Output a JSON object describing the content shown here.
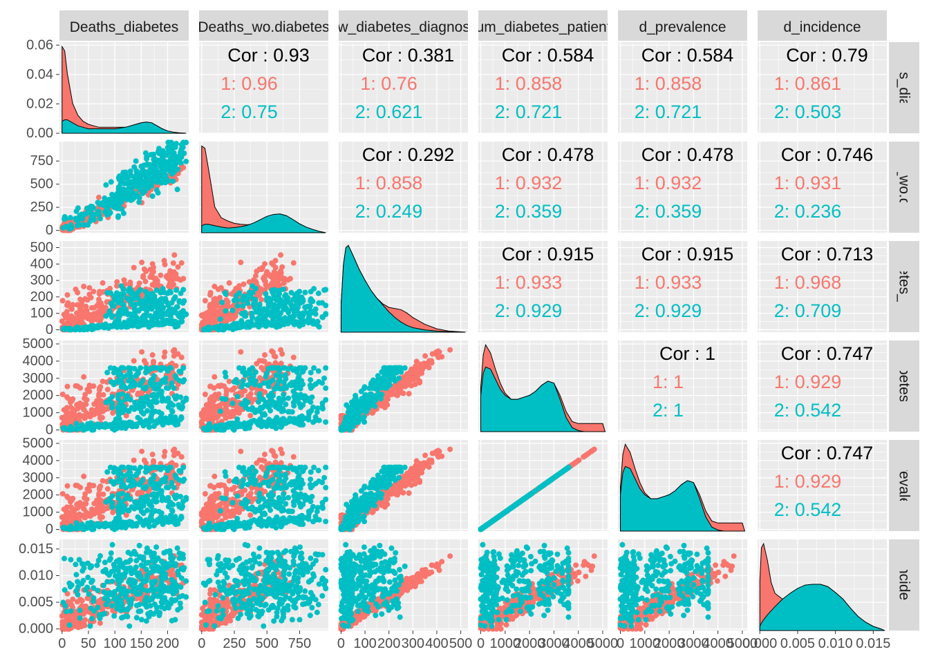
{
  "colors": {
    "group1": "#F8766D",
    "group2": "#00BFC4",
    "panel_bg": "#EBEBEB",
    "strip_bg": "#D9D9D9",
    "grid": "#FFFFFF",
    "tick_text": "#4D4D4D",
    "cor_text": "#000000"
  },
  "chart_data": {
    "type": "scatter",
    "variables": [
      "Deaths_diabetes",
      "Deaths_wo.diabetes",
      "new_diabetes_diagnoses",
      "num_diabetes_patients",
      "d_prevalence",
      "d_incidence"
    ],
    "column_strip_labels": [
      "Deaths_diabetes",
      "Deaths_wo.diabetes",
      "new_diabetes_diagnoses",
      "num_diabetes_patients",
      "d_prevalence",
      "d_incidence"
    ],
    "row_strip_labels": [
      "Deaths_diabetes",
      "Deaths_wo.diabetes",
      "new_diabetes_diagnoses",
      "num_diabetes_patients",
      "d_prevalence",
      "d_incidence"
    ],
    "groups": [
      "1",
      "2"
    ],
    "x_ranges": [
      [
        -5,
        240
      ],
      [
        -20,
        970
      ],
      [
        -10,
        530
      ],
      [
        -100,
        5200
      ],
      [
        -100,
        5200
      ],
      [
        -0.0003,
        0.0168
      ]
    ],
    "y_ranges": [
      [
        0,
        0.062
      ],
      [
        -25,
        960
      ],
      [
        -15,
        540
      ],
      [
        -100,
        5200
      ],
      [
        -100,
        5200
      ],
      [
        -0.0003,
        0.0168
      ]
    ],
    "x_ticks": [
      {
        "values": [
          0,
          50,
          100,
          150,
          200
        ],
        "labels": [
          "0",
          "50",
          "100",
          "150",
          "200"
        ]
      },
      {
        "values": [
          0,
          250,
          500,
          750
        ],
        "labels": [
          "0",
          "250",
          "500",
          "750"
        ]
      },
      {
        "values": [
          0,
          100,
          200,
          300,
          400,
          500
        ],
        "labels": [
          "0",
          "100",
          "200",
          "300",
          "400",
          "500"
        ]
      },
      {
        "values": [
          0,
          1000,
          2000,
          3000,
          4000,
          5000
        ],
        "labels": [
          "0",
          "1000",
          "2000",
          "3000",
          "4000",
          "5000"
        ]
      },
      {
        "values": [
          0,
          1000,
          2000,
          3000,
          4000,
          5000
        ],
        "labels": [
          "0",
          "1000",
          "2000",
          "3000",
          "4000",
          "5000"
        ]
      },
      {
        "values": [
          0,
          0.005,
          0.01,
          0.015
        ],
        "labels": [
          "0.000",
          "0.005",
          "0.010",
          "0.015"
        ]
      }
    ],
    "y_ticks": [
      {
        "values": [
          0,
          0.02,
          0.04,
          0.06
        ],
        "labels": [
          "0.00",
          "0.02",
          "0.04",
          "0.06"
        ]
      },
      {
        "values": [
          0,
          250,
          500,
          750
        ],
        "labels": [
          "0",
          "250",
          "500",
          "750"
        ]
      },
      {
        "values": [
          0,
          100,
          200,
          300,
          400,
          500
        ],
        "labels": [
          "0",
          "100",
          "200",
          "300",
          "400",
          "500"
        ]
      },
      {
        "values": [
          0,
          1000,
          2000,
          3000,
          4000,
          5000
        ],
        "labels": [
          "0",
          "1000",
          "2000",
          "3000",
          "4000",
          "5000"
        ]
      },
      {
        "values": [
          0,
          1000,
          2000,
          3000,
          4000,
          5000
        ],
        "labels": [
          "0",
          "1000",
          "2000",
          "3000",
          "4000",
          "5000"
        ]
      },
      {
        "values": [
          0,
          0.005,
          0.01,
          0.015
        ],
        "labels": [
          "0.000",
          "0.005",
          "0.010",
          "0.015"
        ]
      }
    ],
    "correlations": [
      {
        "row": 1,
        "col": 2,
        "overall": "Cor : 0.93",
        "g1": "1: 0.96",
        "g2": "2: 0.75"
      },
      {
        "row": 1,
        "col": 3,
        "overall": "Cor : 0.381",
        "g1": "1: 0.76",
        "g2": "2: 0.621"
      },
      {
        "row": 1,
        "col": 4,
        "overall": "Cor : 0.584",
        "g1": "1: 0.858",
        "g2": "2: 0.721"
      },
      {
        "row": 1,
        "col": 5,
        "overall": "Cor : 0.584",
        "g1": "1: 0.858",
        "g2": "2: 0.721"
      },
      {
        "row": 1,
        "col": 6,
        "overall": "Cor : 0.79",
        "g1": "1: 0.861",
        "g2": "2: 0.503"
      },
      {
        "row": 2,
        "col": 3,
        "overall": "Cor : 0.292",
        "g1": "1: 0.858",
        "g2": "2: 0.249"
      },
      {
        "row": 2,
        "col": 4,
        "overall": "Cor : 0.478",
        "g1": "1: 0.932",
        "g2": "2: 0.359"
      },
      {
        "row": 2,
        "col": 5,
        "overall": "Cor : 0.478",
        "g1": "1: 0.932",
        "g2": "2: 0.359"
      },
      {
        "row": 2,
        "col": 6,
        "overall": "Cor : 0.746",
        "g1": "1: 0.931",
        "g2": "2: 0.236"
      },
      {
        "row": 3,
        "col": 4,
        "overall": "Cor : 0.915",
        "g1": "1: 0.933",
        "g2": "2: 0.929"
      },
      {
        "row": 3,
        "col": 5,
        "overall": "Cor : 0.915",
        "g1": "1: 0.933",
        "g2": "2: 0.929"
      },
      {
        "row": 3,
        "col": 6,
        "overall": "Cor : 0.713",
        "g1": "1: 0.968",
        "g2": "2: 0.709"
      },
      {
        "row": 4,
        "col": 5,
        "overall": "Cor : 1",
        "g1": "1: 1",
        "g2": "2: 1"
      },
      {
        "row": 4,
        "col": 6,
        "overall": "Cor : 0.747",
        "g1": "1: 0.929",
        "g2": "2: 0.542"
      },
      {
        "row": 5,
        "col": 6,
        "overall": "Cor : 0.747",
        "g1": "1: 0.929",
        "g2": "2: 0.542"
      }
    ],
    "densities": [
      {
        "var": "Deaths_diabetes",
        "x": [
          0,
          5,
          10,
          20,
          30,
          40,
          50,
          60,
          70,
          80,
          90,
          100,
          110,
          120,
          130,
          140,
          150,
          160,
          170,
          180,
          190,
          200,
          210,
          220,
          235
        ],
        "g1": [
          0.058,
          0.055,
          0.04,
          0.02,
          0.012,
          0.008,
          0.006,
          0.005,
          0.004,
          0.004,
          0.004,
          0.004,
          0.004,
          0.004,
          0.005,
          0.006,
          0.007,
          0.0075,
          0.007,
          0.005,
          0.003,
          0.0015,
          0.0008,
          0.0003,
          0
        ],
        "g2": [
          0.008,
          0.009,
          0.009,
          0.007,
          0.005,
          0.004,
          0.003,
          0.003,
          0.003,
          0.003,
          0.003,
          0.003,
          0.0035,
          0.004,
          0.005,
          0.006,
          0.007,
          0.0075,
          0.007,
          0.005,
          0.003,
          0.0015,
          0.0008,
          0.0003,
          0
        ]
      },
      {
        "var": "Deaths_wo.diabetes",
        "x": [
          0,
          25,
          50,
          100,
          150,
          200,
          250,
          300,
          350,
          400,
          450,
          500,
          550,
          600,
          650,
          700,
          750,
          800,
          850,
          900,
          950
        ],
        "g1": [
          0.0185,
          0.018,
          0.014,
          0.0055,
          0.0032,
          0.0025,
          0.002,
          0.0018,
          0.0017,
          0.0018,
          0.0024,
          0.0032,
          0.0038,
          0.004,
          0.0036,
          0.0028,
          0.0019,
          0.0012,
          0.0007,
          0.0003,
          0
        ],
        "g2": [
          0.0015,
          0.0018,
          0.0018,
          0.0015,
          0.0012,
          0.001,
          0.0011,
          0.0013,
          0.0016,
          0.0021,
          0.0028,
          0.0035,
          0.0039,
          0.004,
          0.0036,
          0.0028,
          0.0019,
          0.0012,
          0.0007,
          0.0003,
          0
        ]
      },
      {
        "var": "new_diabetes_diagnoses",
        "x": [
          0,
          10,
          20,
          30,
          50,
          75,
          100,
          125,
          150,
          175,
          200,
          225,
          250,
          275,
          300,
          350,
          400,
          450,
          500,
          520
        ],
        "g1": [
          0.0025,
          0.006,
          0.0075,
          0.0077,
          0.0068,
          0.0056,
          0.0046,
          0.0037,
          0.003,
          0.0025,
          0.0022,
          0.0021,
          0.002,
          0.0017,
          0.0013,
          0.0007,
          0.0003,
          0.0001,
          3e-05,
          0
        ],
        "g2": [
          0.0025,
          0.006,
          0.0075,
          0.0077,
          0.0068,
          0.0056,
          0.0046,
          0.0037,
          0.003,
          0.0024,
          0.0018,
          0.0013,
          0.0009,
          0.0006,
          0.0004,
          0.0002,
          0.0001,
          4e-05,
          1e-05,
          0
        ]
      },
      {
        "var": "num_diabetes_patients",
        "x": [
          0,
          100,
          200,
          400,
          600,
          800,
          1000,
          1250,
          1500,
          1750,
          2000,
          2250,
          2500,
          2750,
          3000,
          3250,
          3500,
          3750,
          4000,
          4250,
          4500,
          4750,
          5000,
          5100
        ],
        "g1": [
          0.00022,
          0.00038,
          0.00043,
          0.00039,
          0.00031,
          0.00024,
          0.00019,
          0.00016,
          0.00016,
          0.00017,
          0.00018,
          0.0002,
          0.00023,
          0.00025,
          0.00024,
          0.00018,
          0.0001,
          5e-05,
          4e-05,
          4e-05,
          4e-05,
          4e-05,
          4e-05,
          0
        ],
        "g2": [
          0.00018,
          0.00029,
          0.00032,
          0.00031,
          0.00026,
          0.00021,
          0.00018,
          0.00016,
          0.00016,
          0.00017,
          0.00018,
          0.0002,
          0.00023,
          0.00025,
          0.00024,
          0.00016,
          7e-05,
          2e-05,
          5e-06,
          0,
          0,
          0,
          0,
          0
        ]
      },
      {
        "var": "d_prevalence",
        "x": [
          0,
          100,
          200,
          400,
          600,
          800,
          1000,
          1250,
          1500,
          1750,
          2000,
          2250,
          2500,
          2750,
          3000,
          3250,
          3500,
          3750,
          4000,
          4250,
          4500,
          4750,
          5000,
          5100
        ],
        "g1": [
          0.00022,
          0.00038,
          0.00043,
          0.00039,
          0.00031,
          0.00024,
          0.00019,
          0.00016,
          0.00016,
          0.00017,
          0.00018,
          0.0002,
          0.00023,
          0.00025,
          0.00024,
          0.00018,
          0.0001,
          5e-05,
          4e-05,
          4e-05,
          4e-05,
          4e-05,
          4e-05,
          0
        ],
        "g2": [
          0.00018,
          0.00029,
          0.00032,
          0.00031,
          0.00026,
          0.00021,
          0.00018,
          0.00016,
          0.00016,
          0.00017,
          0.00018,
          0.0002,
          0.00023,
          0.00025,
          0.00024,
          0.00016,
          7e-05,
          2e-05,
          5e-06,
          0,
          0,
          0,
          0,
          0
        ]
      },
      {
        "var": "d_incidence",
        "x": [
          0,
          0.0002,
          0.0005,
          0.001,
          0.0015,
          0.002,
          0.003,
          0.004,
          0.005,
          0.006,
          0.007,
          0.008,
          0.009,
          0.01,
          0.011,
          0.012,
          0.013,
          0.014,
          0.015,
          0.016,
          0.0165
        ],
        "g1": [
          60,
          100,
          105,
          85,
          58,
          45,
          38,
          38,
          45,
          52,
          56,
          56,
          53,
          46,
          38,
          27,
          17,
          10,
          5,
          2,
          0
        ],
        "g2": [
          5,
          9,
          13,
          19,
          24,
          29,
          38,
          45,
          51,
          55,
          56,
          56,
          53,
          46,
          38,
          27,
          17,
          10,
          5,
          2,
          0
        ]
      }
    ],
    "scatter_structure": {
      "group1": {
        "Deaths_diabetes": "0 to 240, concentrated 0 to 150",
        "Deaths_wo.diabetes": "0 to 960, concentrated 0 to 500",
        "new_diabetes_diagnoses": "0 to 520, mostly 50 to 350",
        "num_diabetes_patients": "0 to 5100, mostly 500 to 4000",
        "d_prevalence": "equal to num_diabetes_patients",
        "d_incidence": "0 to 0.016, mostly 0.001 to 0.011"
      },
      "group2": {
        "Deaths_diabetes": "0 to 240, mostly 100 to 230",
        "Deaths_wo.diabetes": "0 to 960, mostly 350 to 950",
        "new_diabetes_diagnoses": "0 to 300, mostly 0 to 150",
        "num_diabetes_patients": "0 to 3600",
        "d_prevalence": "equal to num_diabetes_patients",
        "d_incidence": "0 to 0.016, mostly 0.004 to 0.014"
      }
    }
  }
}
